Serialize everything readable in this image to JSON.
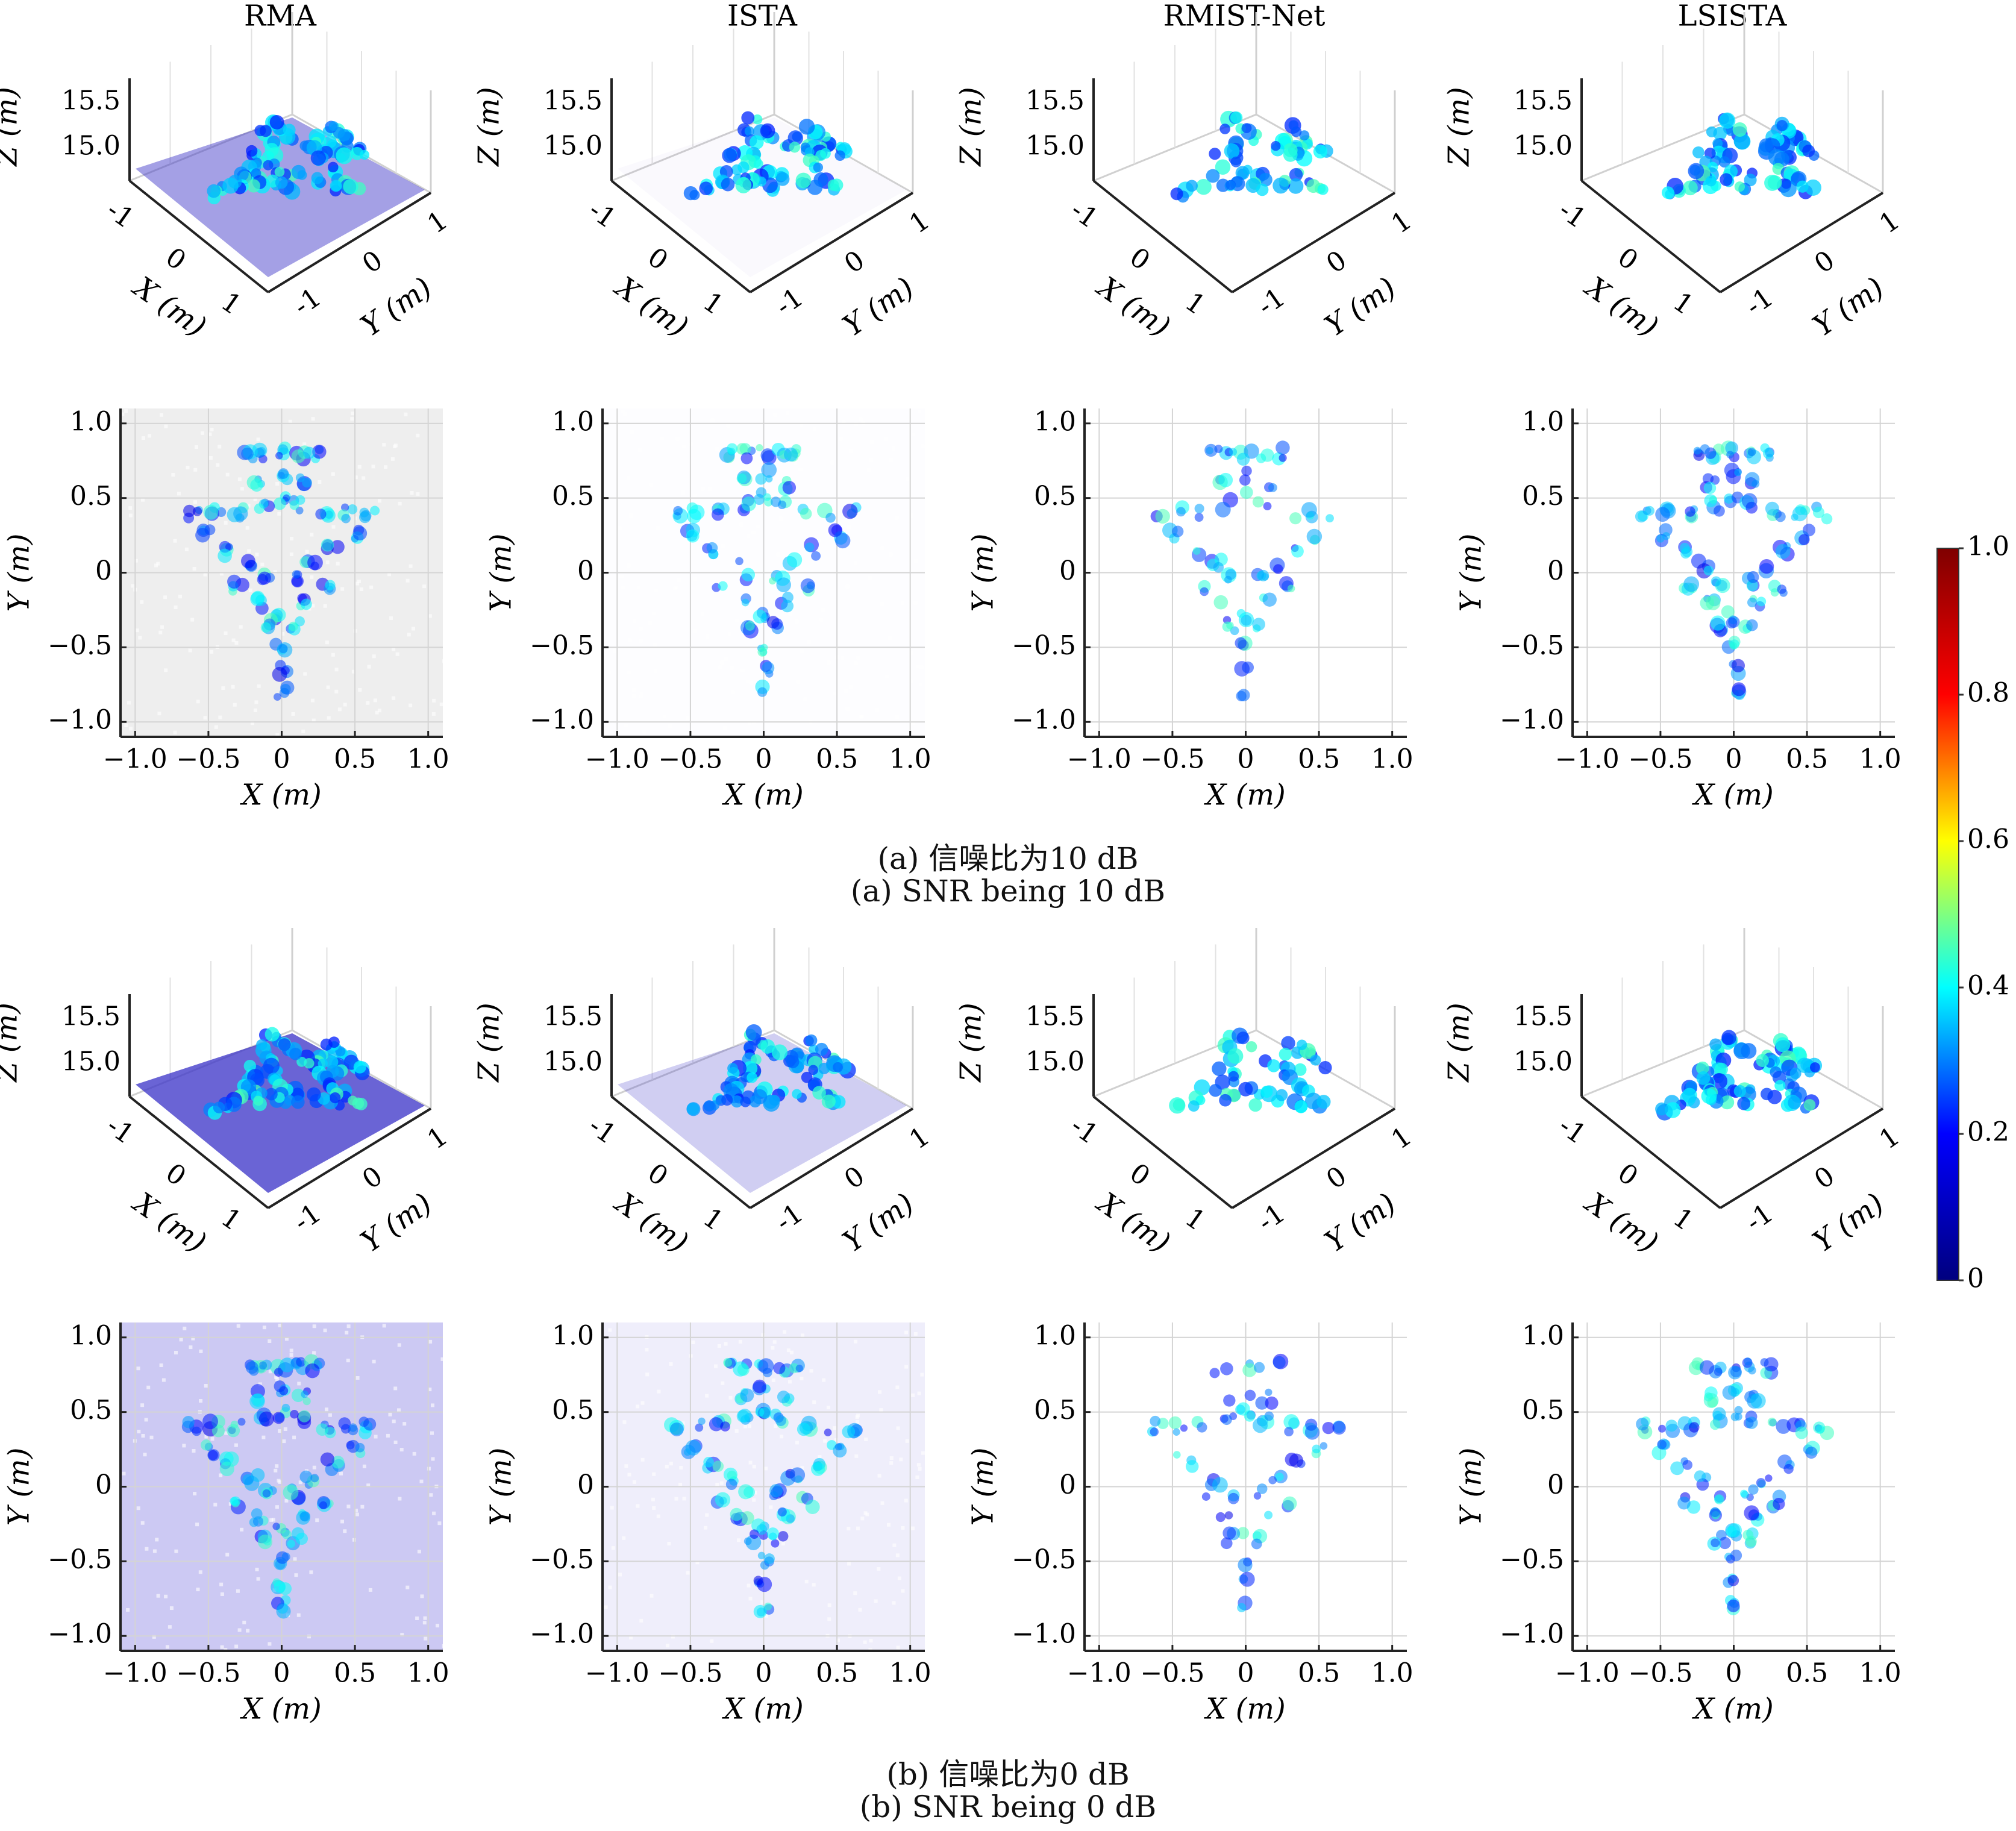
{
  "methods": [
    "RMA",
    "ISTA",
    "RMIST-Net",
    "LSISTA"
  ],
  "panels": [
    {
      "id": "a",
      "caption_cn": "(a) 信噪比为10 dB",
      "caption_en": "(a) SNR being 10 dB",
      "snr_db": 10
    },
    {
      "id": "b",
      "caption_cn": "(b) 信噪比为0 dB",
      "caption_en": "(b) SNR being 0 dB",
      "snr_db": 0
    }
  ],
  "view3d": {
    "xlabel": "X (m)",
    "ylabel": "Y (m)",
    "zlabel": "Z (m)",
    "x_ticks": [
      "-1",
      "0",
      "1"
    ],
    "y_ticks": [
      "-1",
      "0",
      "1"
    ],
    "z_ticks": [
      "15.5",
      "15.0"
    ]
  },
  "view2d": {
    "xlabel": "X (m)",
    "ylabel": "Y (m)",
    "x_ticks": [
      "−1.0",
      "−0.5",
      "0",
      "0.5",
      "1.0"
    ],
    "y_ticks": [
      "1.0",
      "0.5",
      "0",
      "−0.5",
      "−1.0"
    ],
    "x_tick_values": [
      -1.0,
      -0.5,
      0,
      0.5,
      1.0
    ],
    "y_tick_values": [
      1.0,
      0.5,
      0,
      -0.5,
      -1.0
    ],
    "xlim": [
      -1.1,
      1.1
    ],
    "ylim": [
      -1.1,
      1.1
    ]
  },
  "noise_alpha": [
    [
      0.55,
      0.03,
      0.0,
      0.0
    ],
    [
      0.9,
      0.28,
      0.0,
      0.0
    ]
  ],
  "colorbar": {
    "ticks": [
      "1.0",
      "0.8",
      "0.6",
      "0.4",
      "0.2",
      "0"
    ],
    "tick_values": [
      1.0,
      0.8,
      0.6,
      0.4,
      0.2,
      0
    ],
    "colormap": "jet",
    "colors": [
      "#00007f",
      "#0000ff",
      "#00ffff",
      "#ffff00",
      "#ff0000",
      "#7f0000"
    ]
  },
  "chart_data": {
    "type": "scatter",
    "title": "",
    "xlabel": "X (m)",
    "ylabel": "Y (m)",
    "xlim": [
      -1.1,
      1.1
    ],
    "ylim": [
      -1.1,
      1.1
    ],
    "target_outline_points": [
      [
        0,
        0.8
      ],
      [
        -0.12,
        0.8
      ],
      [
        0.12,
        0.8
      ],
      [
        -0.22,
        0.8
      ],
      [
        0.22,
        0.8
      ],
      [
        0,
        0.65
      ],
      [
        -0.15,
        0.6
      ],
      [
        0.15,
        0.6
      ],
      [
        0,
        0.5
      ],
      [
        -0.12,
        0.45
      ],
      [
        0.12,
        0.45
      ],
      [
        -0.3,
        0.4
      ],
      [
        0.3,
        0.4
      ],
      [
        -0.45,
        0.4
      ],
      [
        0.45,
        0.4
      ],
      [
        -0.6,
        0.4
      ],
      [
        0.6,
        0.4
      ],
      [
        -0.5,
        0.25
      ],
      [
        0.5,
        0.25
      ],
      [
        -0.35,
        0.15
      ],
      [
        0.35,
        0.15
      ],
      [
        -0.2,
        0.05
      ],
      [
        0.2,
        0.05
      ],
      [
        -0.1,
        -0.05
      ],
      [
        0.1,
        -0.05
      ],
      [
        -0.3,
        -0.1
      ],
      [
        0.3,
        -0.1
      ],
      [
        -0.15,
        -0.2
      ],
      [
        0.15,
        -0.2
      ],
      [
        0,
        -0.3
      ],
      [
        -0.1,
        -0.35
      ],
      [
        0.1,
        -0.35
      ],
      [
        0,
        -0.5
      ],
      [
        0,
        -0.65
      ],
      [
        0,
        -0.8
      ]
    ]
  }
}
